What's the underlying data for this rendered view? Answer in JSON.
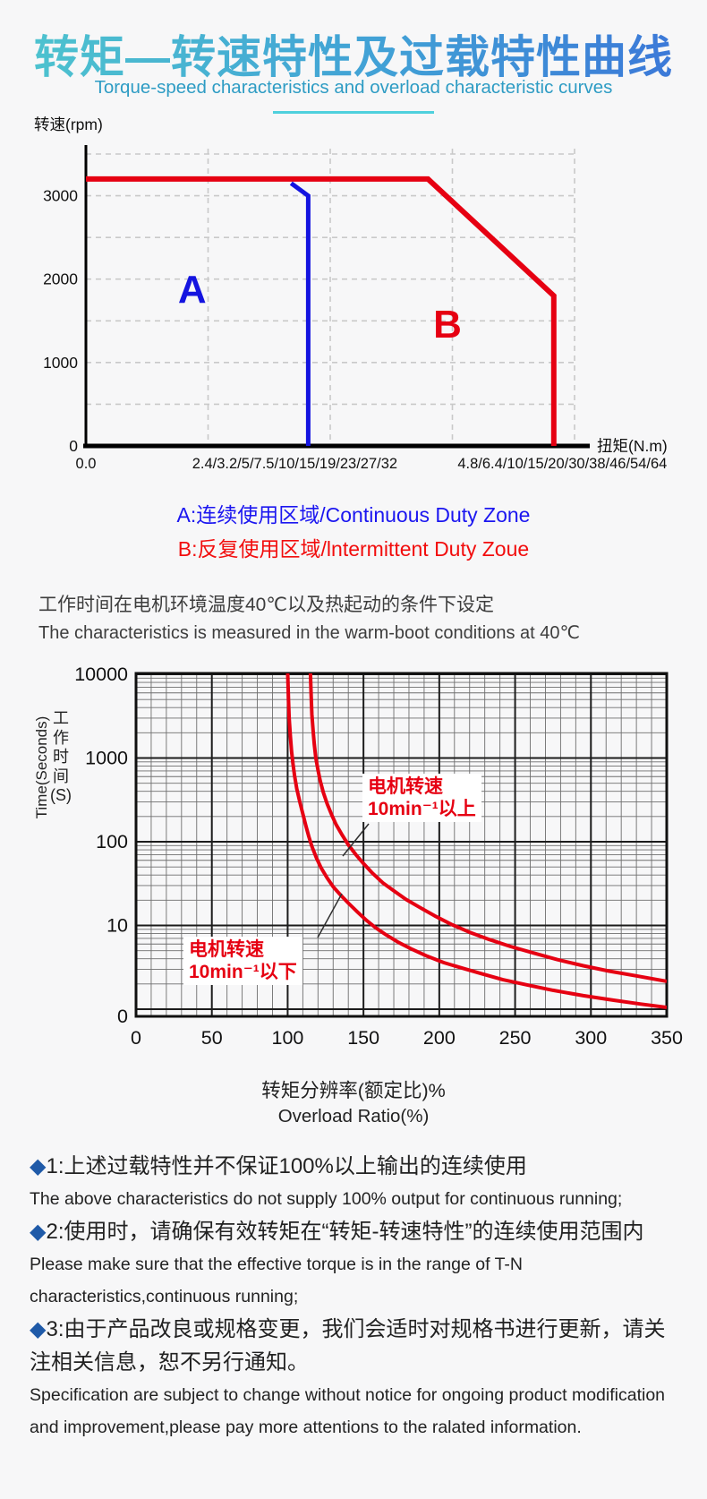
{
  "page": {
    "title": "转矩—转速特性及过载特性曲线",
    "subtitle": "Torque-speed characteristics and overload characteristic curves"
  },
  "colors": {
    "red": "#e60012",
    "blue": "#1414e0",
    "legend_blue": "#1b16f0",
    "legend_red": "#f20d0d",
    "diamond_blue": "#1f5aa8",
    "teal_underline": "#4fd0dd",
    "subtitle_teal": "#2e9cc4",
    "grid_light": "#c9c9c9",
    "grid_dark": "#1c1c1c"
  },
  "condition": {
    "zh": "工作时间在电机环境温度40℃以及热起动的条件下设定",
    "en": "The characteristics is measured in the warm-boot conditions at 40℃"
  },
  "chart_data": [
    {
      "type": "line",
      "title": "",
      "ylabel": "转速(rpm)",
      "xlabel": "扭矩(N.m)",
      "ylim": [
        0,
        3500
      ],
      "xlim": [
        0,
        4
      ],
      "grid": "dashed",
      "y_ticks": [
        {
          "label": "3000",
          "v": 3000
        },
        {
          "label": "2000",
          "v": 2000
        },
        {
          "label": "1000",
          "v": 1000
        },
        {
          "label": "0",
          "v": 0
        }
      ],
      "x_tick_labels": [
        {
          "text": "0.0",
          "u": 0
        },
        {
          "text": "2.4/3.2/5/7.5/10/15/19/23/27/32",
          "u": 1.71
        },
        {
          "text": "4.8/6.4/10/15/20/30/38/46/54/64",
          "u": 3.9
        }
      ],
      "series": [
        {
          "name": "B:反复使用区域/lntermittent Duty Zoue",
          "zone": "B",
          "color": "red",
          "width": 6,
          "points": [
            [
              0,
              3200
            ],
            [
              2.8,
              3200
            ],
            [
              3.83,
              1800
            ],
            [
              3.83,
              0
            ]
          ]
        },
        {
          "name": "A:连续使用区域/Continuous Duty Zone",
          "zone": "A",
          "color": "blue",
          "width": 5,
          "points": [
            [
              1.68,
              3150
            ],
            [
              1.82,
              3000
            ],
            [
              1.82,
              0
            ]
          ]
        }
      ],
      "zone_labels": [
        {
          "text": "A",
          "u": 0.87,
          "v": 1720,
          "color": "blue"
        },
        {
          "text": "B",
          "u": 2.96,
          "v": 1300,
          "color": "red"
        }
      ]
    },
    {
      "type": "line",
      "title": "",
      "x_scale": "linear",
      "y_scale": "log",
      "xlabel_zh": "转矩分辨率(额定比)%",
      "xlabel_en": "Overload Ratio(%)",
      "ylabel_zh_lines": [
        "工",
        "作",
        "时",
        "间",
        "(S)"
      ],
      "ylabel_en": "Time(Seconds)",
      "xlim": [
        0,
        350
      ],
      "x_ticks": [
        0,
        50,
        100,
        150,
        200,
        250,
        300,
        350
      ],
      "y_ticks": [
        {
          "label": "10000",
          "v": 10000
        },
        {
          "label": "1000",
          "v": 1000
        },
        {
          "label": "100",
          "v": 100
        },
        {
          "label": "10",
          "v": 10
        },
        {
          "label": "0",
          "v": null
        }
      ],
      "series": [
        {
          "name": "电机转速10min⁻¹以下",
          "color": "red",
          "points": [
            [
              100,
              11000
            ],
            [
              100.5,
              5200
            ],
            [
              101,
              3000
            ],
            [
              101.8,
              1800
            ],
            [
              102.6,
              1200
            ],
            [
              103.5,
              850
            ],
            [
              104.5,
              620
            ],
            [
              106,
              430
            ],
            [
              108,
              300
            ],
            [
              110,
              215
            ],
            [
              112,
              155
            ],
            [
              114,
              115
            ],
            [
              116,
              88
            ],
            [
              119,
              64
            ],
            [
              122,
              49
            ],
            [
              126,
              37
            ],
            [
              130,
              29
            ],
            [
              135,
              23
            ],
            [
              140,
              18.5
            ],
            [
              146,
              14.5
            ],
            [
              152,
              11.5
            ],
            [
              158,
              9.4
            ],
            [
              165,
              7.7
            ],
            [
              173,
              6.3
            ],
            [
              182,
              5.2
            ],
            [
              192,
              4.3
            ],
            [
              203,
              3.6
            ],
            [
              215,
              3.1
            ],
            [
              228,
              2.65
            ],
            [
              242,
              2.25
            ],
            [
              258,
              1.95
            ],
            [
              275,
              1.68
            ],
            [
              295,
              1.45
            ],
            [
              315,
              1.28
            ],
            [
              333,
              1.15
            ],
            [
              350,
              1.05
            ]
          ]
        },
        {
          "name": "电机转速10min⁻¹以上",
          "color": "red",
          "points": [
            [
              115,
              11000
            ],
            [
              115.5,
              5500
            ],
            [
              116,
              3300
            ],
            [
              116.8,
              2100
            ],
            [
              117.6,
              1450
            ],
            [
              118.6,
              1000
            ],
            [
              120,
              720
            ],
            [
              121.5,
              530
            ],
            [
              123.5,
              390
            ],
            [
              126,
              285
            ],
            [
              129,
              210
            ],
            [
              132,
              160
            ],
            [
              136,
              120
            ],
            [
              140,
              92
            ],
            [
              145,
              70
            ],
            [
              150,
              55
            ],
            [
              156,
              42
            ],
            [
              163,
              32
            ],
            [
              170,
              26
            ],
            [
              178,
              20.5
            ],
            [
              187,
              16.5
            ],
            [
              197,
              13
            ],
            [
              208,
              10.3
            ],
            [
              220,
              8.3
            ],
            [
              233,
              6.8
            ],
            [
              247,
              5.6
            ],
            [
              262,
              4.7
            ],
            [
              278,
              3.9
            ],
            [
              295,
              3.3
            ],
            [
              312,
              2.85
            ],
            [
              330,
              2.5
            ],
            [
              350,
              2.15
            ]
          ]
        }
      ],
      "annotations": [
        {
          "lines": [
            "电机转速",
            "10min⁻¹以上"
          ],
          "target_series": "电机转速10min⁻¹以上"
        },
        {
          "lines": [
            "电机转速",
            "10min⁻¹以下"
          ],
          "target_series": "电机转速10min⁻¹以下"
        }
      ]
    }
  ],
  "notes": {
    "bullet": "◆",
    "items": [
      {
        "num": "1:",
        "zh": "上述过载特性并不保证100%以上输出的连续使用",
        "en": "The above characteristics do not supply 100% output for continuous running;"
      },
      {
        "num": "2:",
        "zh": "使用时，请确保有效转矩在“转矩-转速特性”的连续使用范围内",
        "en": "Please make sure that the effective torque is in the range of T-N characteristics,continuous running;"
      },
      {
        "num": "3:",
        "zh": "由于产品改良或规格变更，我们会适时对规格书进行更新，请关注相关信息，恕不另行通知。",
        "en": "Specification are subject to change without notice for ongoing product modification and improvement,please pay more attentions to the ralated information."
      }
    ]
  }
}
